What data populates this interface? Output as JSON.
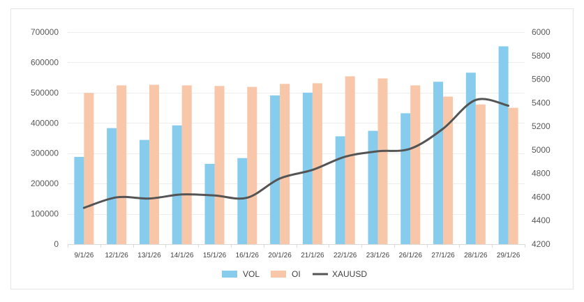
{
  "chart_data": {
    "type": "bar",
    "title": "",
    "xlabel": "",
    "ylabel": "",
    "categories": [
      "9/1/26",
      "12/1/26",
      "13/1/26",
      "14/1/26",
      "15/1/26",
      "16/1/26",
      "20/1/26",
      "21/1/26",
      "22/1/26",
      "23/1/26",
      "26/1/26",
      "27/1/26",
      "28/1/26",
      "29/1/26"
    ],
    "series": [
      {
        "name": "VOL",
        "type": "bar",
        "axis": "left",
        "color": "#87CCEC",
        "values": [
          288000,
          383000,
          344000,
          392000,
          265000,
          284000,
          491000,
          500000,
          356000,
          374000,
          432000,
          536000,
          566000,
          653000
        ]
      },
      {
        "name": "OI",
        "type": "bar",
        "axis": "left",
        "color": "#F8C6A8",
        "values": [
          499000,
          524000,
          526000,
          524000,
          522000,
          519000,
          529000,
          531000,
          554000,
          547000,
          524000,
          487000,
          461000,
          450000
        ]
      },
      {
        "name": "XAUUSD",
        "type": "line",
        "axis": "right",
        "color": "#545454",
        "smooth": true,
        "values": [
          4508,
          4597,
          4587,
          4622,
          4613,
          4594,
          4757,
          4830,
          4942,
          4988,
          5010,
          5180,
          5424,
          5375
        ]
      }
    ],
    "y_left": {
      "ylim": [
        0,
        700000
      ],
      "ticks": [
        0,
        100000,
        200000,
        300000,
        400000,
        500000,
        600000,
        700000
      ],
      "tick_labels": [
        "0",
        "100000",
        "200000",
        "300000",
        "400000",
        "500000",
        "600000",
        "700000"
      ]
    },
    "y_right": {
      "ylim": [
        4200,
        6000
      ],
      "ticks": [
        4200,
        4400,
        4600,
        4800,
        5000,
        5200,
        5400,
        5600,
        5800,
        6000
      ],
      "tick_labels": [
        "4200",
        "4400",
        "4600",
        "4800",
        "5000",
        "5200",
        "5400",
        "5600",
        "5800",
        "6000"
      ]
    },
    "grid": true,
    "legend": {
      "position": "bottom",
      "entries": [
        "VOL",
        "OI",
        "XAUUSD"
      ]
    }
  }
}
